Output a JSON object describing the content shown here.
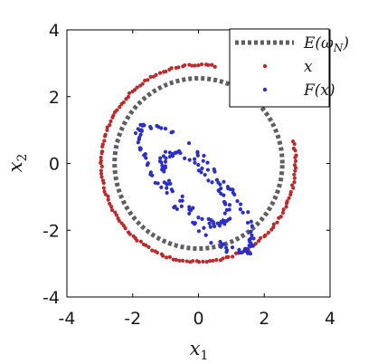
{
  "chart_data": {
    "type": "scatter",
    "xlabel": "x",
    "xlabel_sub": "1",
    "ylabel": "x",
    "ylabel_sub": "2",
    "xlim": [
      -4,
      4
    ],
    "ylim": [
      -4,
      4
    ],
    "xticks": [
      -4,
      -2,
      0,
      2,
      4
    ],
    "yticks": [
      -4,
      -2,
      0,
      2,
      4
    ],
    "xtick_labels": [
      "-4",
      "-2",
      "0",
      "2",
      "4"
    ],
    "ytick_labels": [
      "-4",
      "-2",
      "0",
      "2",
      "4"
    ],
    "grid": false,
    "legend_position": "top-right",
    "series": [
      {
        "name": "E(ω_N)",
        "kind": "dotted-curve",
        "color": "#5f5f5f",
        "shape": "circle",
        "center": [
          0,
          0
        ],
        "radius": 2.55
      },
      {
        "name": "x",
        "kind": "points",
        "color": "#c0282a",
        "shape": "circle",
        "center": [
          0,
          0
        ],
        "radius": 2.95,
        "gap_deg": [
          15,
          80
        ],
        "count": 150
      },
      {
        "name": "F(x)",
        "kind": "points",
        "color": "#2b2fc7",
        "shape": "ellipse",
        "center": [
          -0.1,
          -0.75
        ],
        "semi_major": 2.45,
        "semi_minor": 0.8,
        "angle_deg": -48,
        "jitter": 0.1,
        "count": 190
      }
    ],
    "legend": [
      {
        "label": "E(ω",
        "sub": "N",
        "suffix": ")",
        "marker": "dashed-line",
        "color": "#5f5f5f"
      },
      {
        "label": "x",
        "sub": "",
        "suffix": "",
        "marker": "dot",
        "color": "#c0282a"
      },
      {
        "label": "F(x)",
        "sub": "",
        "suffix": "",
        "marker": "dot",
        "color": "#2b2fc7"
      }
    ]
  }
}
